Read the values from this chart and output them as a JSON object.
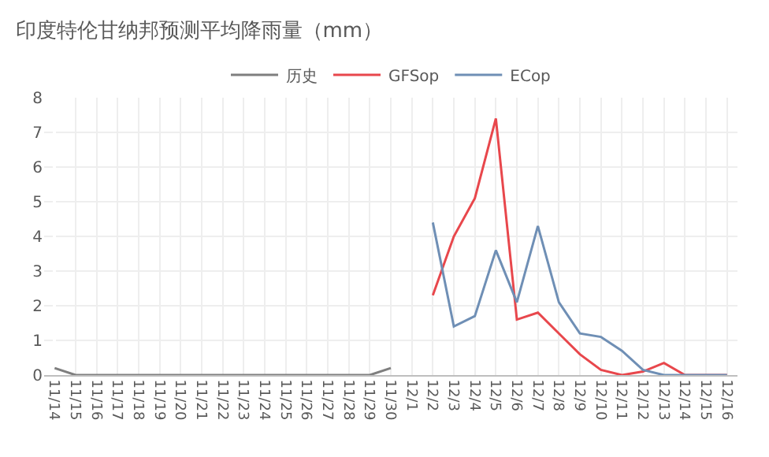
{
  "chart_data": {
    "type": "line",
    "title": "印度特伦甘纳邦预测平均降雨量（mm）",
    "categories": [
      "11/14",
      "11/15",
      "11/16",
      "11/17",
      "11/18",
      "11/19",
      "11/20",
      "11/21",
      "11/22",
      "11/23",
      "11/24",
      "11/25",
      "11/26",
      "11/27",
      "11/28",
      "11/29",
      "11/30",
      "12/1",
      "12/2",
      "12/3",
      "12/4",
      "12/5",
      "12/6",
      "12/7",
      "12/8",
      "12/9",
      "12/10",
      "12/11",
      "12/12",
      "12/13",
      "12/14",
      "12/15",
      "12/16"
    ],
    "series": [
      {
        "name": "历史",
        "color": "#7f7f7f",
        "values": [
          0.2,
          0,
          0,
          0,
          0,
          0,
          0,
          0,
          0,
          0,
          0,
          0,
          0,
          0,
          0,
          0,
          0.2,
          null,
          null,
          null,
          null,
          null,
          null,
          null,
          null,
          null,
          null,
          null,
          null,
          null,
          null,
          null,
          null
        ]
      },
      {
        "name": "GFSop",
        "color": "#e8474c",
        "values": [
          null,
          null,
          null,
          null,
          null,
          null,
          null,
          null,
          null,
          null,
          null,
          null,
          null,
          null,
          null,
          null,
          null,
          null,
          2.3,
          4.0,
          5.1,
          7.4,
          1.6,
          1.8,
          1.2,
          0.6,
          0.15,
          0,
          0.1,
          0.35,
          0,
          0,
          0
        ]
      },
      {
        "name": "ECop",
        "color": "#6f8fb5",
        "values": [
          null,
          null,
          null,
          null,
          null,
          null,
          null,
          null,
          null,
          null,
          null,
          null,
          null,
          null,
          null,
          null,
          null,
          null,
          4.4,
          1.4,
          1.7,
          3.6,
          2.1,
          4.3,
          2.1,
          1.2,
          1.1,
          0.7,
          0.15,
          0,
          0,
          0,
          0
        ]
      }
    ],
    "ylim": [
      0,
      8
    ],
    "yticks": [
      0,
      1,
      2,
      3,
      4,
      5,
      6,
      7,
      8
    ],
    "grid": true,
    "legend": "top",
    "marker": "none",
    "line_style": "solid"
  }
}
